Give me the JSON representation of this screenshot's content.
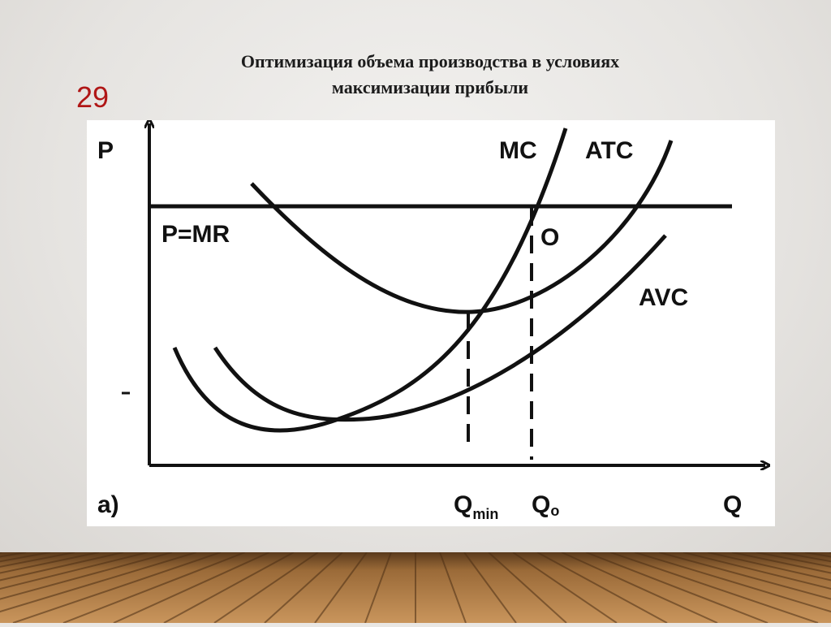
{
  "slide": {
    "title_line1": "Оптимизация объема производства в условиях",
    "title_line2": "максимизации прибыли",
    "number": "29"
  },
  "diagram": {
    "y_axis_label": "P",
    "x_axis_label": "Q",
    "panel_label": "а)",
    "price_line_label": "P=MR",
    "curves": {
      "mc": "MC",
      "atc": "ATC",
      "avc": "AVC"
    },
    "optimum_point_label": "O",
    "q_min": {
      "main": "Q",
      "sub": "min"
    },
    "q_o": {
      "main": "Q",
      "sub": "o"
    }
  },
  "colors": {
    "title": "#1c1c1c",
    "slide_number": "#b01616",
    "lines": "#111111",
    "floor": "#8a5a2e"
  }
}
